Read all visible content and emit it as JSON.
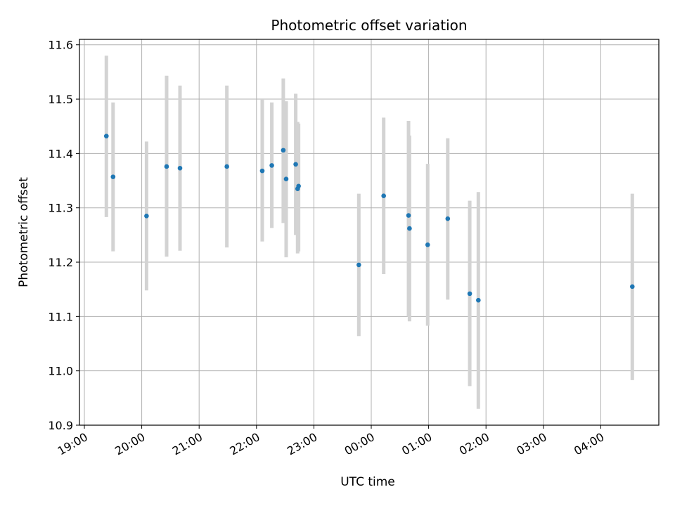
{
  "chart_data": {
    "type": "scatter",
    "title": "Photometric offset variation",
    "xlabel": "UTC time",
    "ylabel": "Photometric offset",
    "grid": true,
    "legend": "none",
    "x_unit": "UTC hours (continuing past midnight)",
    "xlim": [
      "19:00",
      "05:00"
    ],
    "ylim": [
      10.9,
      11.61
    ],
    "x_ticks": [
      "19:00",
      "20:00",
      "21:00",
      "22:00",
      "23:00",
      "00:00",
      "01:00",
      "02:00",
      "03:00",
      "04:00"
    ],
    "y_ticks": [
      "10.9",
      "11.0",
      "11.1",
      "11.2",
      "11.3",
      "11.4",
      "11.5",
      "11.6"
    ],
    "colors": {
      "point": "#1f77b4",
      "errorbar": "#d3d3d3",
      "grid": "#b0b0b0"
    },
    "points": [
      {
        "x": "19:23",
        "y": 11.432,
        "ylow": 11.283,
        "yhigh": 11.58
      },
      {
        "x": "19:30",
        "y": 11.357,
        "ylow": 11.22,
        "yhigh": 11.494
      },
      {
        "x": "20:05",
        "y": 11.285,
        "ylow": 11.148,
        "yhigh": 11.422
      },
      {
        "x": "20:26",
        "y": 11.376,
        "ylow": 11.21,
        "yhigh": 11.543
      },
      {
        "x": "20:40",
        "y": 11.373,
        "ylow": 11.221,
        "yhigh": 11.525
      },
      {
        "x": "21:29",
        "y": 11.376,
        "ylow": 11.227,
        "yhigh": 11.525
      },
      {
        "x": "22:06",
        "y": 11.368,
        "ylow": 11.238,
        "yhigh": 11.499
      },
      {
        "x": "22:16",
        "y": 11.378,
        "ylow": 11.263,
        "yhigh": 11.494
      },
      {
        "x": "22:28",
        "y": 11.406,
        "ylow": 11.272,
        "yhigh": 11.538
      },
      {
        "x": "22:31",
        "y": 11.353,
        "ylow": 11.209,
        "yhigh": 11.496
      },
      {
        "x": "22:41",
        "y": 11.38,
        "ylow": 11.25,
        "yhigh": 11.51
      },
      {
        "x": "22:43",
        "y": 11.335,
        "ylow": 11.216,
        "yhigh": 11.458
      },
      {
        "x": "22:44",
        "y": 11.34,
        "ylow": 11.22,
        "yhigh": 11.455
      },
      {
        "x": "23:47",
        "y": 11.195,
        "ylow": 11.064,
        "yhigh": 11.326
      },
      {
        "x": "00:13",
        "y": 11.322,
        "ylow": 11.178,
        "yhigh": 11.466
      },
      {
        "x": "00:39",
        "y": 11.286,
        "ylow": 11.1,
        "yhigh": 11.46
      },
      {
        "x": "00:40",
        "y": 11.262,
        "ylow": 11.091,
        "yhigh": 11.433
      },
      {
        "x": "00:59",
        "y": 11.232,
        "ylow": 11.083,
        "yhigh": 11.381
      },
      {
        "x": "01:20",
        "y": 11.28,
        "ylow": 11.131,
        "yhigh": 11.428
      },
      {
        "x": "01:43",
        "y": 11.142,
        "ylow": 10.972,
        "yhigh": 11.313
      },
      {
        "x": "01:52",
        "y": 11.13,
        "ylow": 10.93,
        "yhigh": 11.329
      },
      {
        "x": "04:33",
        "y": 11.155,
        "ylow": 10.983,
        "yhigh": 11.326
      }
    ]
  }
}
